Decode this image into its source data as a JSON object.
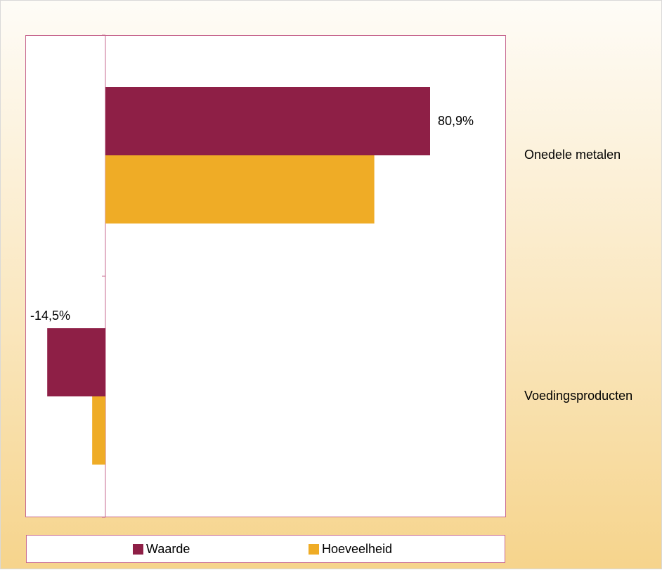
{
  "chart_data": {
    "type": "bar",
    "orientation": "horizontal",
    "categories": [
      "Onedele metalen",
      "Voedingsproducten"
    ],
    "series": [
      {
        "name": "Waarde",
        "color": "#8e1f46",
        "values": [
          80.9,
          -14.5
        ]
      },
      {
        "name": "Hoeveelheid",
        "color": "#efac26",
        "values": [
          67.0,
          -3.3
        ]
      }
    ],
    "data_labels": [
      "80,9%",
      "-14,5%"
    ],
    "xlim": [
      -20,
      100
    ],
    "legend_position": "bottom",
    "grid": false
  },
  "legend": {
    "items": [
      {
        "label": "Waarde",
        "color": "#8e1f46"
      },
      {
        "label": "Hoeveelheid",
        "color": "#efac26"
      }
    ]
  },
  "labels": {
    "cat0": "Onedele metalen",
    "cat1": "Voedingsproducten",
    "dl0": "80,9%",
    "dl1": "-14,5%"
  }
}
